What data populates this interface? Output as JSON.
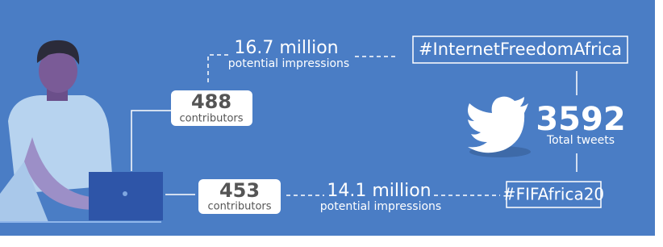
{
  "top_branch": {
    "impressions": "16.7 million",
    "impressions_label": "potential impressions",
    "hashtag": "#InternetFreedomAfrica",
    "contributors": "488",
    "contributors_label": "contributors"
  },
  "total": {
    "count": "3592",
    "label": "Total tweets"
  },
  "bottom_branch": {
    "impressions": "14.1 million",
    "impressions_label": "potential impressions",
    "hashtag": "#FIFAfrica20",
    "contributors": "453",
    "contributors_label": "contributors"
  }
}
